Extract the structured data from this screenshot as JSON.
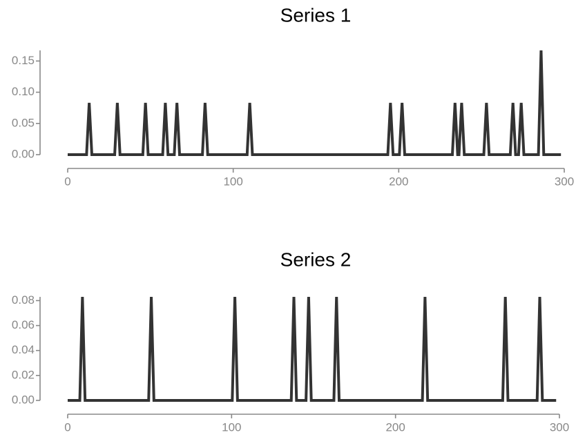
{
  "colors": {
    "line": "#333333",
    "axis": "#888888",
    "background": "#ffffff"
  },
  "chart_data": [
    {
      "type": "line",
      "title": "Series 1",
      "xlabel": "",
      "ylabel": "",
      "xlim": [
        0,
        300
      ],
      "ylim": [
        0,
        0.167
      ],
      "xticks": [
        0,
        100,
        200,
        300
      ],
      "xtick_labels": [
        "0",
        "100",
        "200",
        "300"
      ],
      "yticks": [
        0,
        0.05,
        0.1,
        0.15
      ],
      "ytick_labels": [
        "0.00",
        "0.05",
        "0.10",
        "0.15"
      ],
      "grid": false,
      "series": [
        {
          "x": [
            0,
            298
          ],
          "y": [
            0,
            0
          ],
          "spikes": [
            {
              "x": 13,
              "y": 0.083
            },
            {
              "x": 30,
              "y": 0.083
            },
            {
              "x": 47,
              "y": 0.083
            },
            {
              "x": 59,
              "y": 0.083
            },
            {
              "x": 66,
              "y": 0.083
            },
            {
              "x": 83,
              "y": 0.083
            },
            {
              "x": 110,
              "y": 0.083
            },
            {
              "x": 195,
              "y": 0.083
            },
            {
              "x": 202,
              "y": 0.083
            },
            {
              "x": 234,
              "y": 0.083
            },
            {
              "x": 238,
              "y": 0.083
            },
            {
              "x": 253,
              "y": 0.083
            },
            {
              "x": 269,
              "y": 0.083
            },
            {
              "x": 274,
              "y": 0.083
            },
            {
              "x": 286,
              "y": 0.167
            }
          ]
        }
      ]
    },
    {
      "type": "line",
      "title": "Series 2",
      "xlabel": "",
      "ylabel": "",
      "xlim": [
        0,
        300
      ],
      "ylim": [
        0,
        0.083
      ],
      "xticks": [
        0,
        100,
        200,
        300
      ],
      "xtick_labels": [
        "0",
        "100",
        "200",
        "300"
      ],
      "yticks": [
        0,
        0.02,
        0.04,
        0.06,
        0.08
      ],
      "ytick_labels": [
        "0.00",
        "0.02",
        "0.04",
        "0.06",
        "0.08"
      ],
      "grid": false,
      "series": [
        {
          "x": [
            0,
            298
          ],
          "y": [
            0,
            0
          ],
          "spikes": [
            {
              "x": 9,
              "y": 0.083
            },
            {
              "x": 51,
              "y": 0.083
            },
            {
              "x": 102,
              "y": 0.083
            },
            {
              "x": 138,
              "y": 0.083
            },
            {
              "x": 147,
              "y": 0.083
            },
            {
              "x": 164,
              "y": 0.083
            },
            {
              "x": 218,
              "y": 0.083
            },
            {
              "x": 267,
              "y": 0.083
            },
            {
              "x": 288,
              "y": 0.083
            }
          ]
        }
      ]
    }
  ]
}
